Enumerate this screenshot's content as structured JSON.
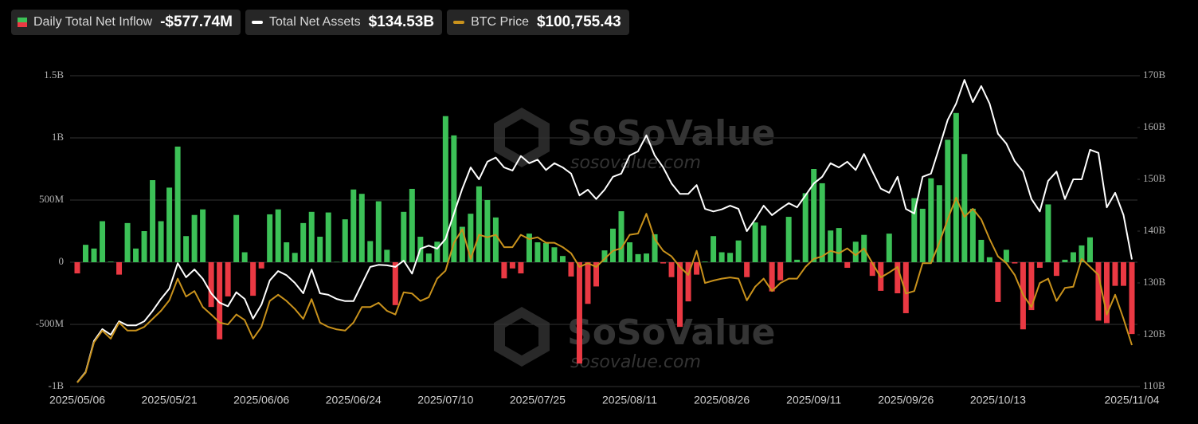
{
  "chart_data": {
    "type": "combo",
    "watermark": [
      "SoSoValue",
      "sosovalue.com"
    ],
    "categories": [
      "2025/05/06",
      null,
      null,
      null,
      null,
      null,
      null,
      null,
      null,
      null,
      null,
      "2025/05/21",
      null,
      null,
      null,
      null,
      null,
      null,
      null,
      null,
      null,
      null,
      "2025/06/06",
      null,
      null,
      null,
      null,
      null,
      null,
      null,
      null,
      null,
      null,
      "2025/06/24",
      null,
      null,
      null,
      null,
      null,
      null,
      null,
      null,
      null,
      null,
      "2025/07/10",
      null,
      null,
      null,
      null,
      null,
      null,
      null,
      null,
      null,
      null,
      "2025/07/25",
      null,
      null,
      null,
      null,
      null,
      null,
      null,
      null,
      null,
      null,
      "2025/08/11",
      null,
      null,
      null,
      null,
      null,
      null,
      null,
      null,
      null,
      null,
      "2025/08/26",
      null,
      null,
      null,
      null,
      null,
      null,
      null,
      null,
      null,
      null,
      "2025/09/11",
      null,
      null,
      null,
      null,
      null,
      null,
      null,
      null,
      null,
      null,
      "2025/09/26",
      null,
      null,
      null,
      null,
      null,
      null,
      null,
      null,
      null,
      null,
      "2025/10/13",
      null,
      null,
      null,
      null,
      null,
      null,
      null,
      null,
      null,
      null,
      null,
      null,
      null,
      null,
      null,
      "2025/11/04"
    ],
    "ylim": [
      -1000000000.0,
      1500000000.0
    ],
    "yticks": [
      {
        "value": -1000000000.0,
        "label": "-1B"
      },
      {
        "value": -500000000.0,
        "label": "-500M"
      },
      0,
      {
        "value": 500000000.0,
        "label": "500M"
      },
      {
        "value": 1000000000.0,
        "label": "1B"
      },
      {
        "value": 1500000000.0,
        "label": "1.5B"
      }
    ],
    "y2lim": [
      110000000000.0,
      170000000000.0
    ],
    "y2ticks": [
      {
        "value": 110000000000.0,
        "label": "110B"
      },
      {
        "value": 120000000000.0,
        "label": "120B"
      },
      {
        "value": 130000000000.0,
        "label": "130B"
      },
      {
        "value": 140000000000.0,
        "label": "140B"
      },
      {
        "value": 150000000000.0,
        "label": "150B"
      },
      {
        "value": 160000000000.0,
        "label": "160B"
      },
      {
        "value": 170000000000.0,
        "label": "170B"
      }
    ],
    "grid": true,
    "series": [
      {
        "name": "Daily Total Net Inflow",
        "type": "bar",
        "color_positive": "#3cc157",
        "color_negative": "#ea3943",
        "latest_label": "-$577.74M",
        "values": [
          -90000000.0,
          140000000.0,
          110000000.0,
          330000000.0,
          5000000.0,
          -100000000.0,
          315000000.0,
          110000000.0,
          250000000.0,
          660000000.0,
          330000000.0,
          600000000.0,
          930000000.0,
          210000000.0,
          380000000.0,
          425000000.0,
          -360000000.0,
          -620000000.0,
          -275000000.0,
          380000000.0,
          80000000.0,
          -270000000.0,
          -50000000.0,
          385000000.0,
          425000000.0,
          160000000.0,
          75000000.0,
          315000000.0,
          405000000.0,
          205000000.0,
          400000000.0,
          3000000.0,
          345000000.0,
          585000000.0,
          550000000.0,
          170000000.0,
          490000000.0,
          100000000.0,
          -345000000.0,
          405000000.0,
          590000000.0,
          205000000.0,
          70000000.0,
          165000000.0,
          1175000000.0,
          1020000000.0,
          285000000.0,
          390000000.0,
          610000000.0,
          500000000.0,
          360000000.0,
          -130000000.0,
          -50000000.0,
          -90000000.0,
          230000000.0,
          160000000.0,
          155000000.0,
          120000000.0,
          50000000.0,
          -115000000.0,
          -815000000.0,
          -335000000.0,
          -195000000.0,
          95000000.0,
          270000000.0,
          410000000.0,
          160000000.0,
          65000000.0,
          70000000.0,
          225000000.0,
          -10000000.0,
          -120000000.0,
          -520000000.0,
          -315000000.0,
          -100000000.0,
          5000000.0,
          210000000.0,
          80000000.0,
          75000000.0,
          175000000.0,
          -120000000.0,
          320000000.0,
          295000000.0,
          -235000000.0,
          -145000000.0,
          365000000.0,
          20000000.0,
          555000000.0,
          750000000.0,
          635000000.0,
          255000000.0,
          275000000.0,
          -45000000.0,
          165000000.0,
          220000000.0,
          -110000000.0,
          -230000000.0,
          230000000.0,
          -250000000.0,
          -410000000.0,
          515000000.0,
          430000000.0,
          675000000.0,
          620000000.0,
          985000000.0,
          1200000000.0,
          870000000.0,
          430000000.0,
          180000000.0,
          40000000.0,
          -320000000.0,
          100000000.0,
          -10000000.0,
          -540000000.0,
          -385000000.0,
          -45000000.0,
          465000000.0,
          -110000000.0,
          20000000.0,
          80000000.0,
          135000000.0,
          200000000.0,
          -470000000.0,
          -490000000.0,
          -190000000.0,
          -190000000.0,
          -577740000.0
        ]
      },
      {
        "name": "Total Net Assets",
        "type": "line",
        "axis": "y2",
        "color": "#ffffff",
        "latest_label": "$134.53B",
        "values": [
          110800000000.0,
          112800000000.0,
          118800000000.0,
          121100000000.0,
          120000000000.0,
          122600000000.0,
          121800000000.0,
          121800000000.0,
          122600000000.0,
          124600000000.0,
          126900000000.0,
          128900000000.0,
          133800000000.0,
          131100000000.0,
          132600000000.0,
          130800000000.0,
          128000000000.0,
          126200000000.0,
          125500000000.0,
          128200000000.0,
          126900000000.0,
          123100000000.0,
          125800000000.0,
          130500000000.0,
          132300000000.0,
          131500000000.0,
          130000000000.0,
          128000000000.0,
          132600000000.0,
          128000000000.0,
          127700000000.0,
          126900000000.0,
          126500000000.0,
          126500000000.0,
          129800000000.0,
          133100000000.0,
          133500000000.0,
          133400000000.0,
          133100000000.0,
          134300000000.0,
          131800000000.0,
          136600000000.0,
          137200000000.0,
          136600000000.0,
          138500000000.0,
          143400000000.0,
          148200000000.0,
          152300000000.0,
          150000000000.0,
          153400000000.0,
          154200000000.0,
          152300000000.0,
          151700000000.0,
          154500000000.0,
          153100000000.0,
          153800000000.0,
          151800000000.0,
          153100000000.0,
          152300000000.0,
          151100000000.0,
          146900000000.0,
          148000000000.0,
          146200000000.0,
          148000000000.0,
          150500000000.0,
          151100000000.0,
          154600000000.0,
          155400000000.0,
          158500000000.0,
          154600000000.0,
          152300000000.0,
          149200000000.0,
          147200000000.0,
          147200000000.0,
          148900000000.0,
          144300000000.0,
          143800000000.0,
          144200000000.0,
          144900000000.0,
          144300000000.0,
          140000000000.0,
          142300000000.0,
          144900000000.0,
          143100000000.0,
          144300000000.0,
          145400000000.0,
          144600000000.0,
          146900000000.0,
          149200000000.0,
          150500000000.0,
          153100000000.0,
          152300000000.0,
          153400000000.0,
          151800000000.0,
          154900000000.0,
          151500000000.0,
          148200000000.0,
          147400000000.0,
          150500000000.0,
          144300000000.0,
          143400000000.0,
          150500000000.0,
          151100000000.0,
          156200000000.0,
          161500000000.0,
          164600000000.0,
          169200000000.0,
          164900000000.0,
          168000000000.0,
          164600000000.0,
          158800000000.0,
          156900000000.0,
          153500000000.0,
          151500000000.0,
          146200000000.0,
          143800000000.0,
          149700000000.0,
          151500000000.0,
          146200000000.0,
          150000000000.0,
          150000000000.0,
          155700000000.0,
          155100000000.0,
          144600000000.0,
          147400000000.0,
          143100000000.0,
          134530000000.0
        ]
      },
      {
        "name": "BTC Price",
        "type": "line",
        "color": "#c9921c",
        "latest_label": "$100,755.43",
        "values": [
          94700,
          96300,
          101200,
          103100,
          101800,
          104400,
          103100,
          103100,
          103700,
          105000,
          106300,
          108000,
          111500,
          108600,
          109500,
          106900,
          105700,
          104400,
          104100,
          105700,
          104800,
          101800,
          103700,
          107900,
          108900,
          107900,
          106600,
          105000,
          108200,
          104400,
          103700,
          103300,
          103100,
          104400,
          106900,
          106900,
          107600,
          106300,
          105700,
          109300,
          109100,
          107900,
          108500,
          111500,
          112800,
          117300,
          119500,
          114700,
          118600,
          118200,
          118600,
          116600,
          116600,
          118600,
          117900,
          118200,
          117300,
          117300,
          116600,
          115600,
          113400,
          114000,
          113400,
          114700,
          116000,
          116400,
          118600,
          118800,
          122000,
          117900,
          116000,
          115100,
          113400,
          112100,
          116000,
          110800,
          111200,
          111500,
          111700,
          111500,
          108000,
          110200,
          111500,
          109500,
          110800,
          111500,
          111500,
          113400,
          114700,
          115100,
          116000,
          115600,
          116400,
          115300,
          116400,
          114000,
          111700,
          112500,
          113400,
          109100,
          109500,
          114000,
          114000,
          117300,
          121100,
          124600,
          121500,
          122800,
          121100,
          117900,
          115100,
          114000,
          112100,
          108900,
          106900,
          110800,
          111500,
          107900,
          110000,
          110200,
          114700,
          113400,
          112100,
          105700,
          108900,
          105000,
          100755.43
        ]
      }
    ]
  }
}
